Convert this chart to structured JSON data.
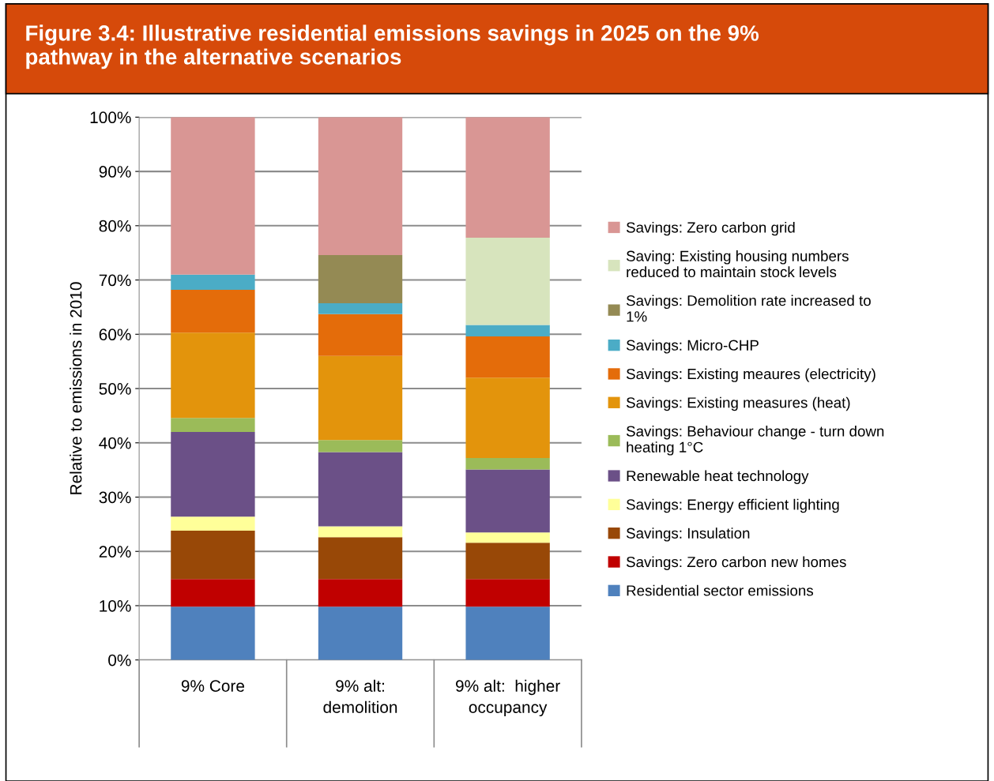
{
  "chart_data": {
    "type": "bar",
    "stacked": true,
    "title": "Figure 3.4: Illustrative residential emissions savings in 2025 on the 9%\npathway in the alternative scenarios",
    "ylabel": "Relative to emissions in 2010",
    "categories": [
      "9% Core",
      "9% alt:\ndemolition",
      "9% alt:  higher\noccupancy"
    ],
    "ylim": [
      0,
      100
    ],
    "yticks": [
      {
        "value": 0,
        "label": "0%"
      },
      {
        "value": 10,
        "label": "10%"
      },
      {
        "value": 20,
        "label": "20%"
      },
      {
        "value": 30,
        "label": "30%"
      },
      {
        "value": 40,
        "label": "40%"
      },
      {
        "value": 50,
        "label": "50%"
      },
      {
        "value": 60,
        "label": "60%"
      },
      {
        "value": 70,
        "label": "70%"
      },
      {
        "value": 80,
        "label": "80%"
      },
      {
        "value": 90,
        "label": "90%"
      },
      {
        "value": 100,
        "label": "100%"
      }
    ],
    "grid": "y",
    "legend": "right",
    "series": [
      {
        "name": "Residential sector emissions",
        "color": "#4f81bd",
        "values": [
          9.8,
          9.8,
          9.8
        ]
      },
      {
        "name": "Savings: Zero carbon new homes",
        "color": "#c00000",
        "values": [
          5.1,
          5.1,
          5.1
        ]
      },
      {
        "name": "Savings: Insulation",
        "color": "#984807",
        "values": [
          8.9,
          7.7,
          6.7
        ]
      },
      {
        "name": "Savings: Energy efficient lighting",
        "color": "#ffff99",
        "values": [
          2.6,
          2.0,
          1.9
        ]
      },
      {
        "name": "Renewable heat technology",
        "color": "#6b5087",
        "values": [
          15.6,
          13.7,
          11.6
        ]
      },
      {
        "name": "Savings: Behaviour change - turn down\nheating 1°C",
        "color": "#9bbb59",
        "values": [
          2.6,
          2.2,
          2.1
        ]
      },
      {
        "name": "Savings: Existing measures (heat)",
        "color": "#e3940c",
        "values": [
          15.7,
          15.5,
          14.8
        ]
      },
      {
        "name": "Savings: Existing meaures (electricity)",
        "color": "#e46c0a",
        "values": [
          7.9,
          7.7,
          7.6
        ]
      },
      {
        "name": "Savings: Micro-CHP",
        "color": "#4bacc6",
        "values": [
          2.8,
          2.0,
          2.1
        ]
      },
      {
        "name": "Savings: Demolition rate increased to\n1%",
        "color": "#948a54",
        "values": [
          0,
          8.9,
          0
        ]
      },
      {
        "name": "Saving: Existing housing numbers\nreduced to maintain stock levels",
        "color": "#d7e4bd",
        "values": [
          0,
          0,
          16.1
        ]
      },
      {
        "name": "Savings: Zero carbon grid",
        "color": "#d99694",
        "values": [
          29.0,
          25.4,
          22.2
        ]
      }
    ]
  }
}
